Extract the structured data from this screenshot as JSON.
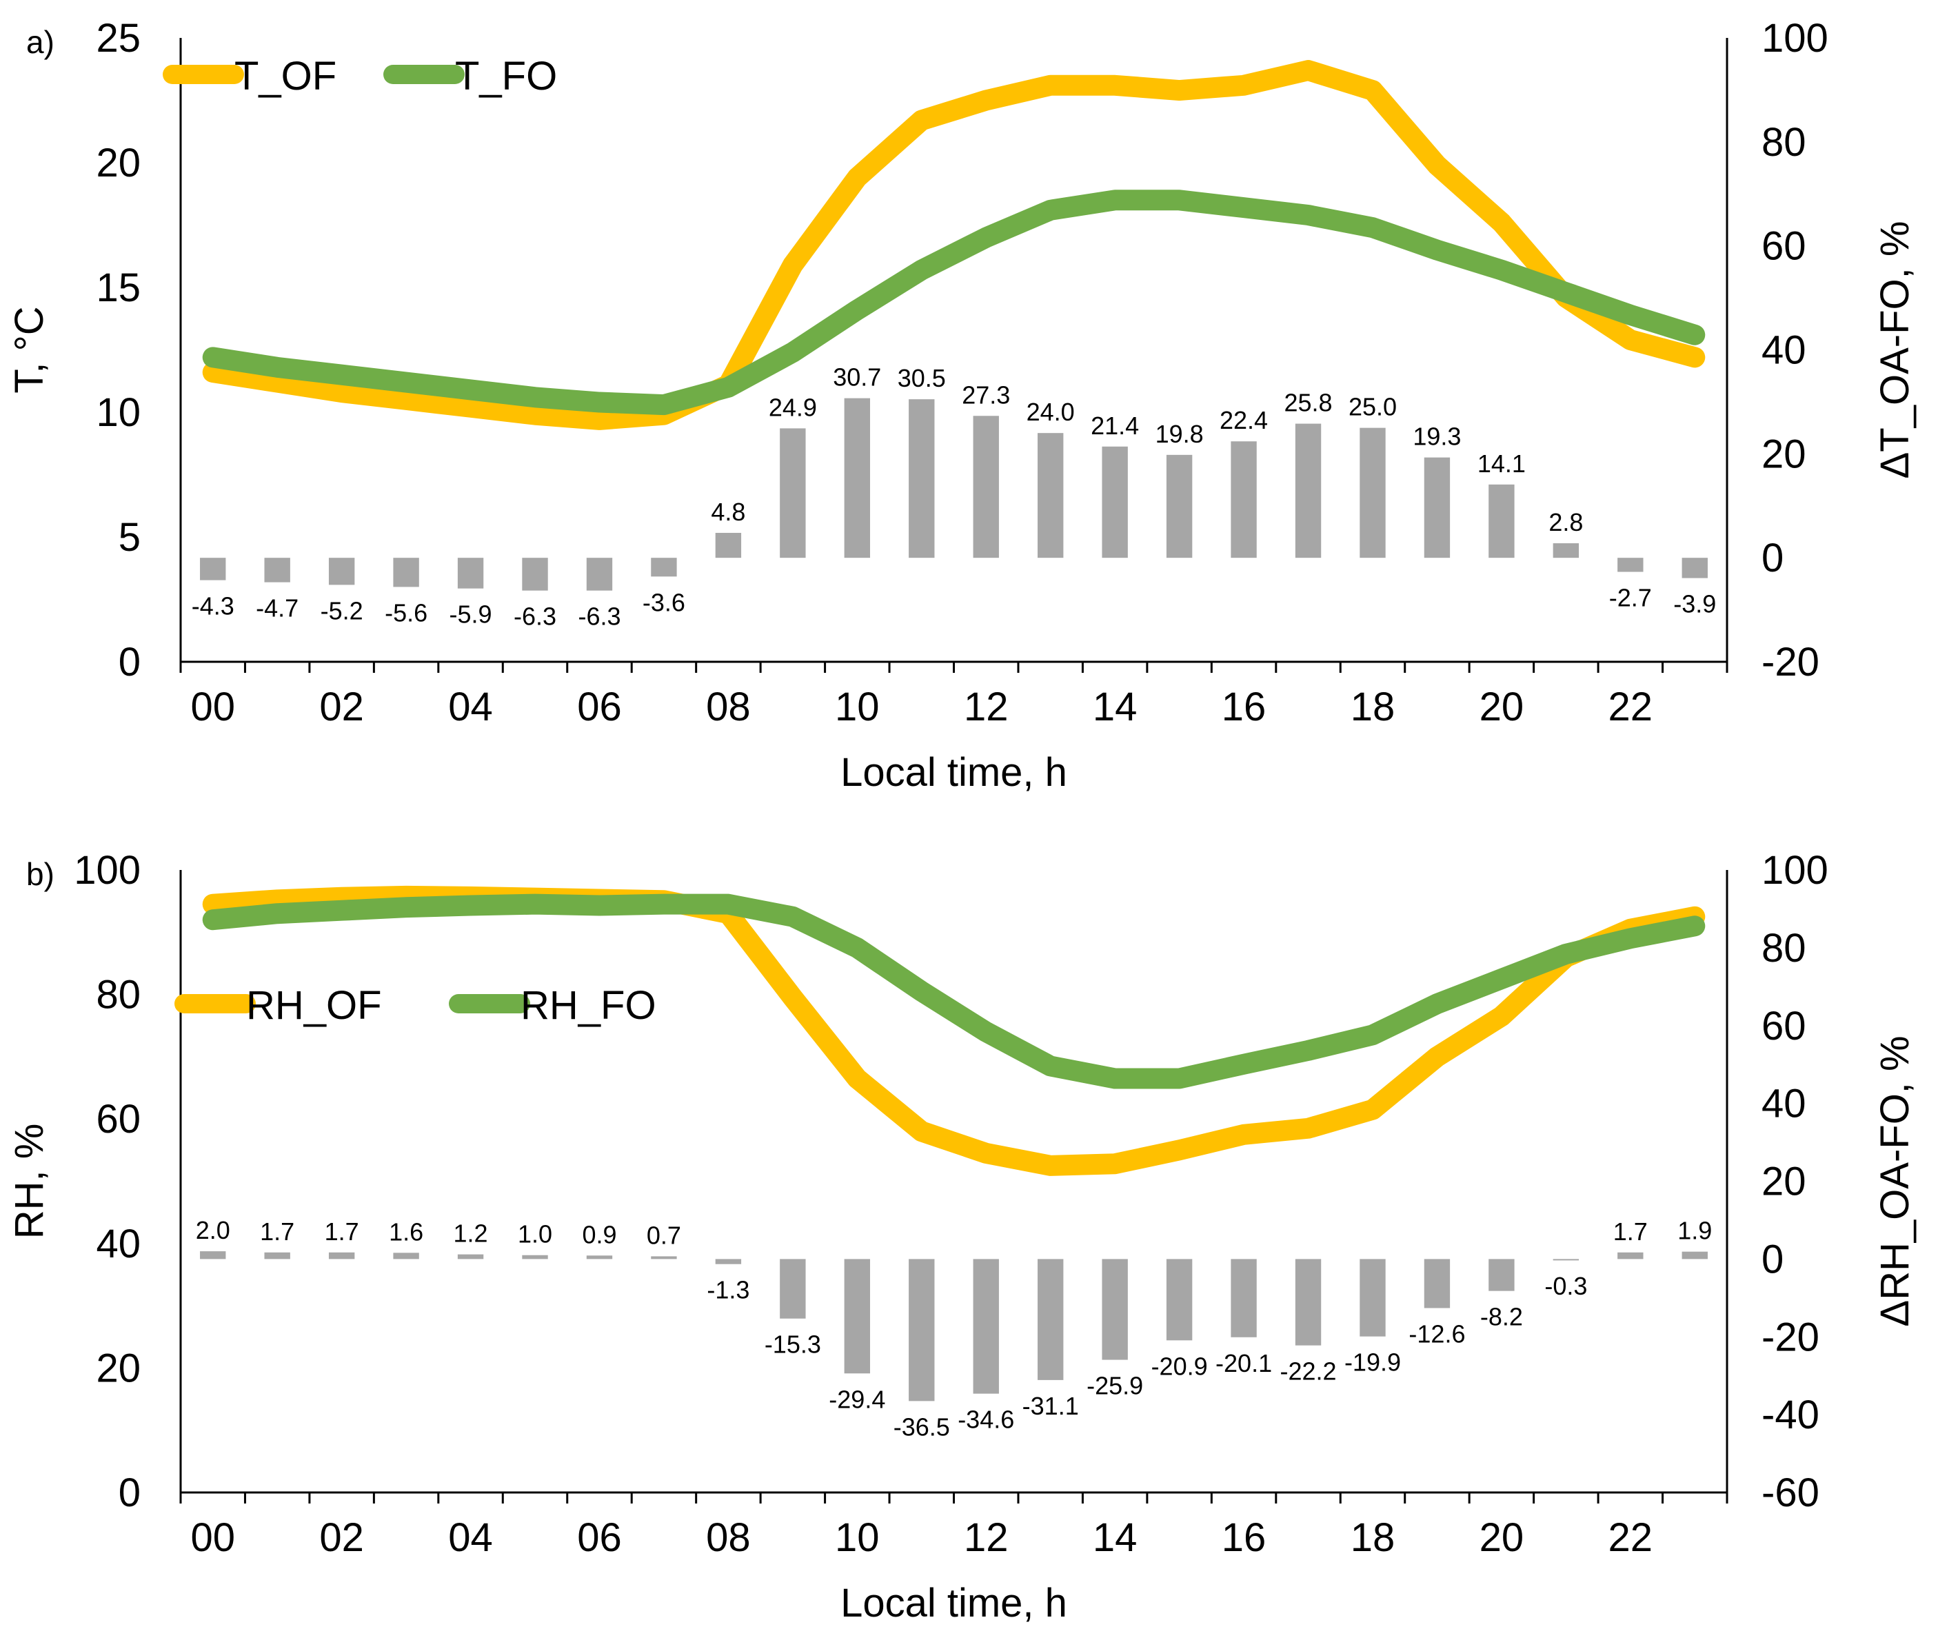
{
  "colors": {
    "of_line": "#FFC000",
    "fo_line": "#70AD47",
    "bars": "#A6A6A6",
    "axis": "#000000"
  },
  "chart_data": [
    {
      "type": "line",
      "panel_label": "a)",
      "x": [
        "00",
        "01",
        "02",
        "03",
        "04",
        "05",
        "06",
        "07",
        "08",
        "09",
        "10",
        "11",
        "12",
        "13",
        "14",
        "15",
        "16",
        "17",
        "18",
        "19",
        "20",
        "21",
        "22",
        "23"
      ],
      "xtick_labels": [
        "00",
        "02",
        "04",
        "06",
        "08",
        "10",
        "12",
        "14",
        "16",
        "18",
        "20",
        "22"
      ],
      "xlabel": "Local time, h",
      "ylabel": "T, °C",
      "ylim": [
        0,
        25
      ],
      "yticks": [
        0,
        5,
        10,
        15,
        20,
        25
      ],
      "y2label": "ΔT_OA-FO, %",
      "y2lim": [
        -20,
        100
      ],
      "y2ticks": [
        -20,
        0,
        20,
        40,
        60,
        80,
        100
      ],
      "legend_position": "top-left",
      "series": [
        {
          "name": "T_OF",
          "axis": "left",
          "values": [
            11.6,
            11.2,
            10.8,
            10.5,
            10.2,
            9.9,
            9.7,
            9.9,
            11.1,
            15.9,
            19.4,
            21.7,
            22.5,
            23.1,
            23.1,
            22.9,
            23.1,
            23.7,
            22.9,
            19.9,
            17.6,
            14.6,
            12.9,
            12.2
          ]
        },
        {
          "name": "T_FO",
          "axis": "left",
          "values": [
            12.2,
            11.8,
            11.5,
            11.2,
            10.9,
            10.6,
            10.4,
            10.3,
            11.0,
            12.4,
            14.1,
            15.7,
            17.0,
            18.1,
            18.5,
            18.5,
            18.2,
            17.9,
            17.4,
            16.5,
            15.7,
            14.8,
            13.9,
            13.1
          ]
        },
        {
          "name": "",
          "type": "bar",
          "axis": "right",
          "values": [
            -4.3,
            -4.7,
            -5.2,
            -5.6,
            -5.9,
            -6.3,
            -6.3,
            -3.6,
            4.8,
            24.9,
            30.7,
            30.5,
            27.3,
            24.0,
            21.4,
            19.8,
            22.4,
            25.8,
            25.0,
            19.3,
            14.1,
            2.8,
            -2.7,
            -3.9
          ]
        }
      ]
    },
    {
      "type": "line",
      "panel_label": "b)",
      "x": [
        "00",
        "01",
        "02",
        "03",
        "04",
        "05",
        "06",
        "07",
        "08",
        "09",
        "10",
        "11",
        "12",
        "13",
        "14",
        "15",
        "16",
        "17",
        "18",
        "19",
        "20",
        "21",
        "22",
        "23"
      ],
      "xtick_labels": [
        "00",
        "02",
        "04",
        "06",
        "08",
        "10",
        "12",
        "14",
        "16",
        "18",
        "20",
        "22"
      ],
      "xlabel": "Local time, h",
      "ylabel": "RH, %",
      "ylim": [
        0,
        100
      ],
      "yticks": [
        0,
        20,
        40,
        60,
        80,
        100
      ],
      "y2label": "ΔRH_OA-FO, %",
      "y2lim": [
        -60,
        100
      ],
      "y2ticks": [
        -60,
        -40,
        -20,
        0,
        20,
        40,
        60,
        80,
        100
      ],
      "legend_position": "upper-left",
      "series": [
        {
          "name": "RH_OF",
          "axis": "left",
          "values": [
            94.5,
            95.2,
            95.6,
            95.8,
            95.7,
            95.5,
            95.3,
            95.1,
            93.0,
            79.5,
            66.5,
            58.0,
            54.5,
            52.5,
            52.8,
            55.0,
            57.5,
            58.5,
            61.5,
            70.0,
            76.5,
            86.0,
            90.5,
            92.5
          ]
        },
        {
          "name": "RH_FO",
          "axis": "left",
          "values": [
            92.0,
            93.0,
            93.5,
            94.0,
            94.3,
            94.5,
            94.3,
            94.5,
            94.5,
            92.5,
            87.5,
            80.5,
            74.0,
            68.5,
            66.5,
            66.5,
            68.8,
            71.0,
            73.5,
            78.5,
            82.5,
            86.5,
            89.0,
            91.0
          ]
        },
        {
          "name": "",
          "type": "bar",
          "axis": "right",
          "values": [
            2.0,
            1.7,
            1.7,
            1.6,
            1.2,
            1.0,
            0.9,
            0.7,
            -1.3,
            -15.3,
            -29.4,
            -36.5,
            -34.6,
            -31.1,
            -25.9,
            -20.9,
            -20.1,
            -22.2,
            -19.9,
            -12.6,
            -8.2,
            -0.3,
            1.7,
            1.9
          ]
        }
      ]
    }
  ]
}
